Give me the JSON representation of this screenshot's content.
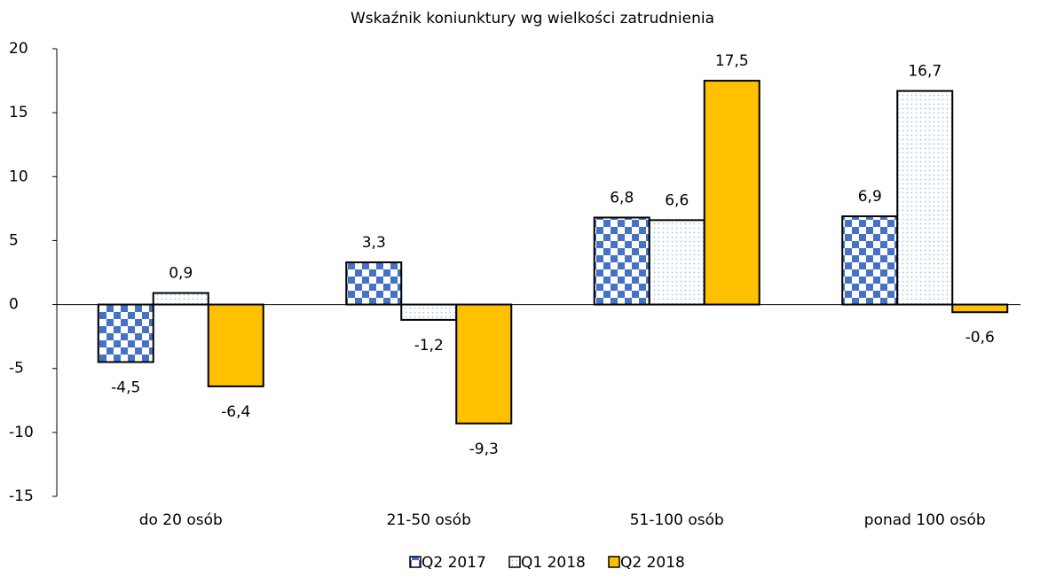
{
  "chart_data": {
    "type": "bar",
    "title": "Wskaźnik koniunktury wg wielkości zatrudnienia",
    "categories": [
      "do 20 osób",
      "21-50 osób",
      "51-100 osób",
      "ponad 100 osób"
    ],
    "series": [
      {
        "name": "Q2 2017",
        "color": "#4472c4",
        "pattern": "checker",
        "values": [
          -4.5,
          3.3,
          6.8,
          6.9
        ],
        "value_labels": [
          "-4,5",
          "3,3",
          "6,8",
          "6,9"
        ]
      },
      {
        "name": "Q1 2018",
        "color": "#9dc3e6",
        "pattern": "dots",
        "values": [
          0.9,
          -1.2,
          6.6,
          16.7
        ],
        "value_labels": [
          "0,9",
          "-1,2",
          "6,6",
          "16,7"
        ]
      },
      {
        "name": "Q2 2018",
        "color": "#ffc000",
        "pattern": "solid",
        "values": [
          -6.4,
          -9.3,
          17.5,
          -0.6
        ],
        "value_labels": [
          "-6,4",
          "-9,3",
          "17,5",
          "-0,6"
        ]
      }
    ],
    "ylim": [
      -15,
      20
    ],
    "yticks": [
      -15,
      -10,
      -5,
      0,
      5,
      10,
      15,
      20
    ],
    "legend": "bottom"
  }
}
